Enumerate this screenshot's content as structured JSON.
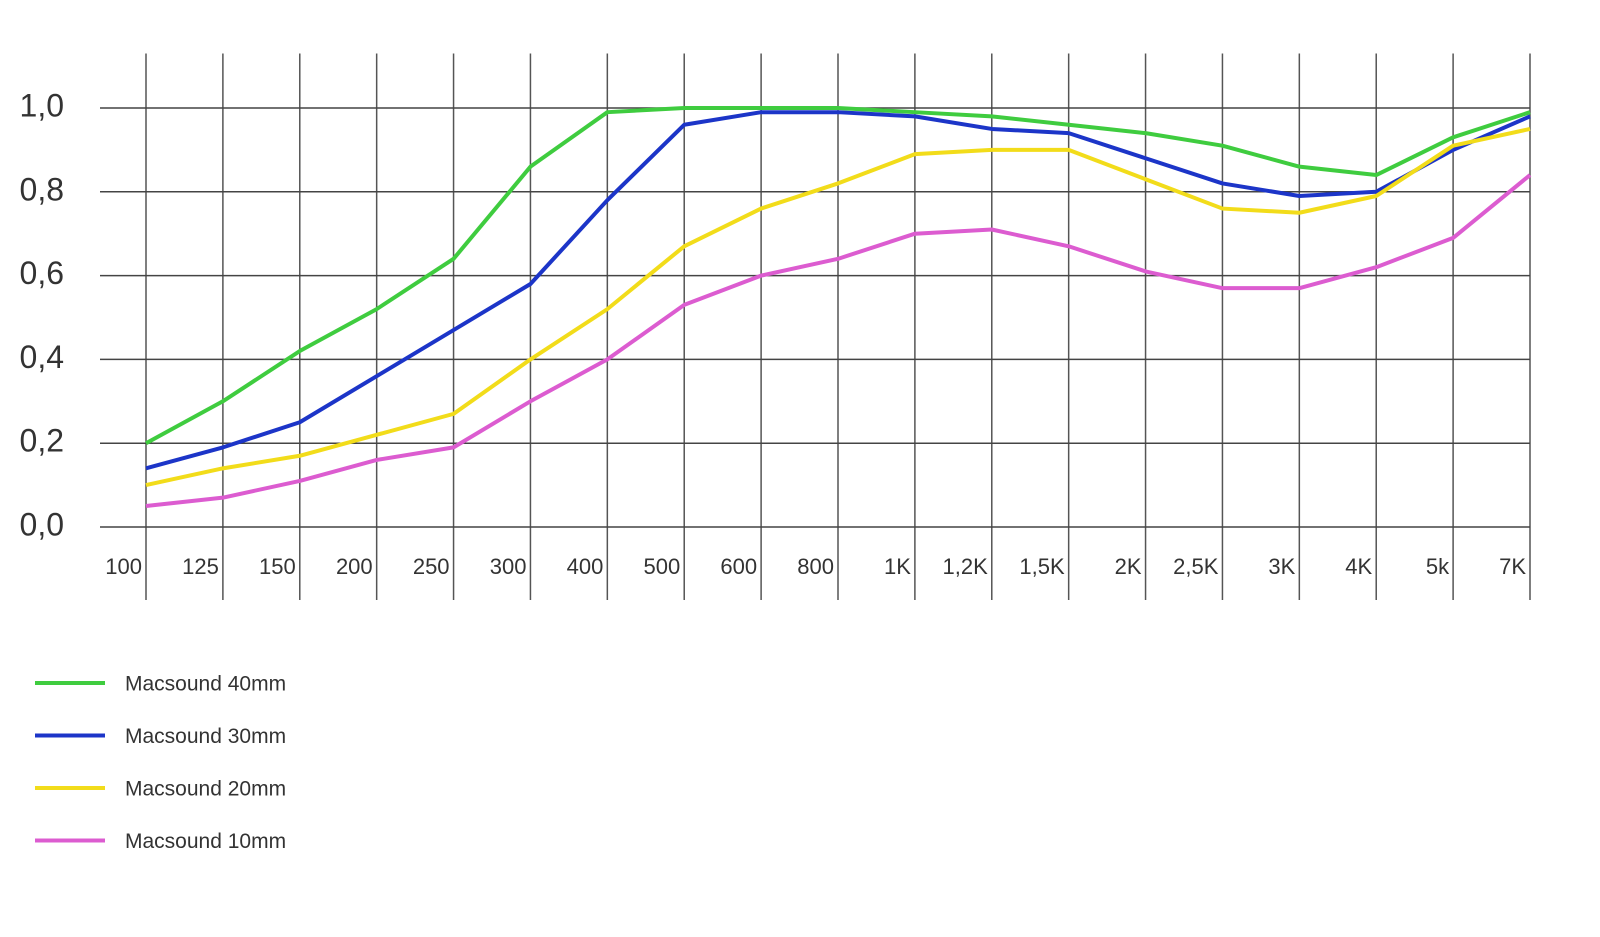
{
  "chart_data": {
    "type": "line",
    "categories": [
      "100",
      "125",
      "150",
      "200",
      "250",
      "300",
      "400",
      "500",
      "600",
      "800",
      "1K",
      "1,2K",
      "1,5K",
      "2K",
      "2,5K",
      "3K",
      "4K",
      "5k",
      "7K"
    ],
    "series": [
      {
        "name": "Macsound 40mm",
        "color": "#3fcc3f",
        "values": [
          0.2,
          0.3,
          0.42,
          0.52,
          0.64,
          0.86,
          0.99,
          1.0,
          1.0,
          1.0,
          0.99,
          0.98,
          0.96,
          0.94,
          0.91,
          0.86,
          0.84,
          0.93,
          0.99
        ]
      },
      {
        "name": "Macsound 30mm",
        "color": "#1c35c8",
        "values": [
          0.14,
          0.19,
          0.25,
          0.36,
          0.47,
          0.58,
          0.78,
          0.96,
          0.99,
          0.99,
          0.98,
          0.95,
          0.94,
          0.88,
          0.82,
          0.79,
          0.8,
          0.9,
          0.98
        ]
      },
      {
        "name": "Macsound 20mm",
        "color": "#f2dc1a",
        "values": [
          0.1,
          0.14,
          0.17,
          0.22,
          0.27,
          0.4,
          0.52,
          0.67,
          0.76,
          0.82,
          0.89,
          0.9,
          0.9,
          0.83,
          0.76,
          0.75,
          0.79,
          0.91,
          0.95
        ]
      },
      {
        "name": "Macsound 10mm",
        "color": "#dc5cd0",
        "values": [
          0.05,
          0.07,
          0.11,
          0.16,
          0.19,
          0.3,
          0.4,
          0.53,
          0.6,
          0.64,
          0.7,
          0.71,
          0.67,
          0.61,
          0.57,
          0.57,
          0.62,
          0.69,
          0.84
        ]
      }
    ],
    "ylim": [
      0,
      1.13
    ],
    "yticks": [
      {
        "value": 0,
        "label": "0,0"
      },
      {
        "value": 0.2,
        "label": "0,2"
      },
      {
        "value": 0.4,
        "label": "0,4"
      },
      {
        "value": 0.6,
        "label": "0,6"
      },
      {
        "value": 0.8,
        "label": "0,8"
      },
      {
        "value": 1.0,
        "label": "1,0"
      }
    ],
    "grid": true
  }
}
